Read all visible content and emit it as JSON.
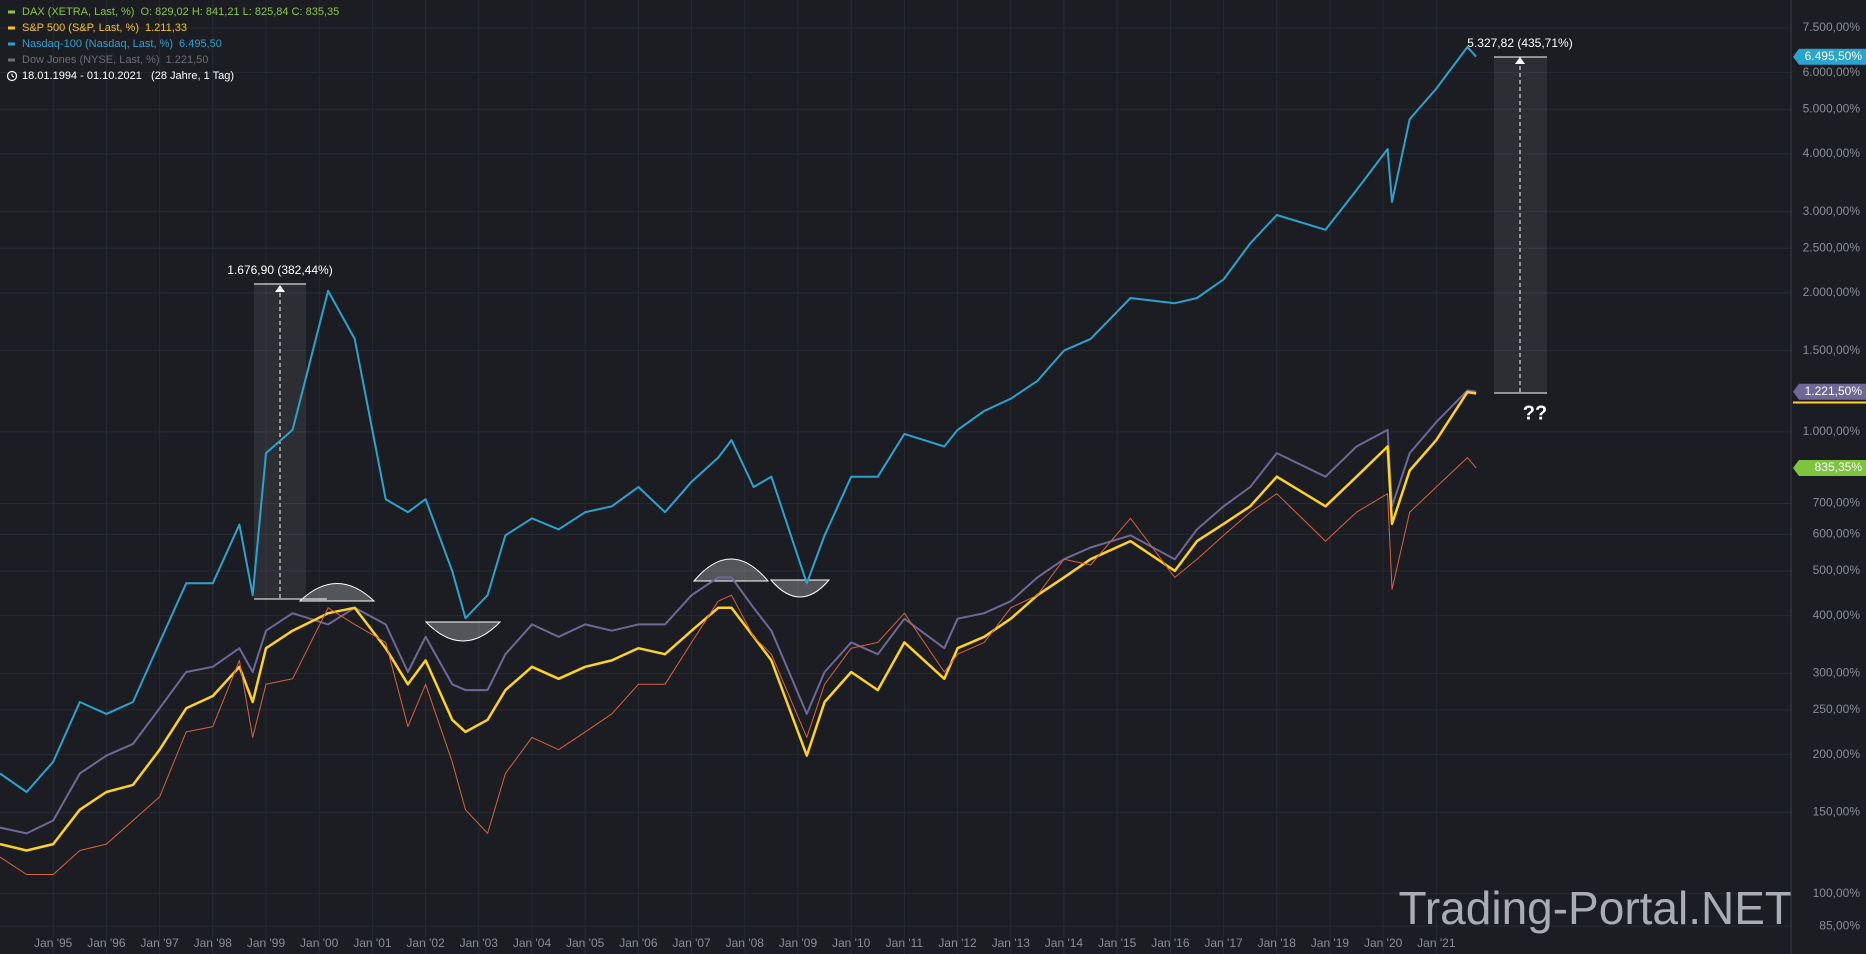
{
  "chart_data": {
    "type": "line",
    "log_scale": true,
    "grid": true,
    "date_range": "18.01.1994 - 01.10.2021   (28 Jahre, 1 Tag)",
    "annotations": [
      "1.676,90 (382,44%)",
      "5.327,82 (435,71%)",
      "??"
    ],
    "watermark": "Trading-Portal.NET",
    "x": [
      "1994-01",
      "1994-07",
      "1995-01",
      "1995-07",
      "1996-01",
      "1996-07",
      "1997-01",
      "1997-07",
      "1998-01",
      "1998-07",
      "1998-10",
      "1999-01",
      "1999-07",
      "2000-03",
      "2000-09",
      "2001-04",
      "2001-09",
      "2002-01",
      "2002-07",
      "2002-10",
      "2003-03",
      "2003-07",
      "2004-01",
      "2004-07",
      "2005-01",
      "2005-07",
      "2006-01",
      "2006-07",
      "2007-01",
      "2007-07",
      "2007-10",
      "2008-03",
      "2008-07",
      "2009-03",
      "2009-07",
      "2010-01",
      "2010-07",
      "2011-01",
      "2011-10",
      "2012-01",
      "2012-07",
      "2013-01",
      "2013-07",
      "2014-01",
      "2014-07",
      "2015-04",
      "2016-02",
      "2016-07",
      "2017-01",
      "2017-07",
      "2018-01",
      "2018-12",
      "2019-07",
      "2020-02",
      "2020-03",
      "2020-07",
      "2021-01",
      "2021-08",
      "2021-10"
    ],
    "series": [
      {
        "name": "DAX (XETRA, Last, %)",
        "legend_value": "O: 829,02  H: 841,21  L: 825,84  C: 835,35",
        "axis_label": "835,35%",
        "color": "#d9623b",
        "legend_color": "#8cc63f",
        "tag_color": "#7cc53d",
        "values": [
          120,
          110,
          110,
          124,
          128,
          144,
          162,
          224,
          230,
          320,
          218,
          284,
          292,
          416,
          383,
          350,
          230,
          284,
          193,
          152,
          135,
          182,
          218,
          205,
          224,
          245,
          284,
          284,
          350,
          430,
          443,
          360,
          330,
          218,
          284,
          340,
          350,
          405,
          302,
          330,
          350,
          416,
          443,
          530,
          515,
          650,
          484,
          530,
          597,
          670,
          735,
          580,
          670,
          735,
          456,
          670,
          760,
          880,
          835.35
        ]
      },
      {
        "name": "S&P 500 (S&P, Last, %)",
        "legend_value": "1.211,33",
        "color": "#ffd21f",
        "legend_color": "#f5c518",
        "values": [
          128,
          124,
          128,
          152,
          166,
          172,
          205,
          252,
          268,
          310,
          260,
          340,
          371,
          405,
          416,
          340,
          284,
          320,
          238,
          224,
          238,
          276,
          310,
          292,
          310,
          320,
          340,
          330,
          371,
          416,
          416,
          360,
          320,
          199,
          260,
          302,
          276,
          350,
          292,
          340,
          360,
          394,
          443,
          484,
          530,
          580,
          500,
          580,
          632,
          690,
          800,
          690,
          800,
          930,
          632,
          825,
          960,
          1220,
          1211.33
        ]
      },
      {
        "name": "Nasdaq-100 (Nasdaq, Last, %)",
        "legend_value": "6.495,50",
        "axis_label": "6.495,50%",
        "color": "#2ba3cf",
        "legend_color": "#2ba3cf",
        "tag_color": "#2ba3cf",
        "values": [
          182,
          166,
          193,
          260,
          245,
          260,
          350,
          470,
          470,
          630,
          443,
          900,
          1010,
          2020,
          1590,
          715,
          670,
          715,
          500,
          395,
          443,
          597,
          650,
          615,
          670,
          690,
          760,
          670,
          780,
          880,
          960,
          760,
          800,
          470,
          597,
          800,
          800,
          990,
          930,
          1010,
          1110,
          1180,
          1290,
          1500,
          1590,
          1950,
          1900,
          1950,
          2140,
          2560,
          2950,
          2740,
          3340,
          4100,
          3150,
          4760,
          5540,
          6820,
          6495.5
        ]
      },
      {
        "name": "Dow Jones (NYSE, Last, %)",
        "legend_value": "1.221,50",
        "axis_label": "1.221,50%",
        "color": "#6f6796",
        "legend_color": "#6e6f75",
        "tag_color": "#6f6796",
        "values": [
          139,
          135,
          144,
          182,
          199,
          211,
          252,
          302,
          310,
          340,
          302,
          371,
          405,
          383,
          416,
          383,
          302,
          360,
          284,
          276,
          276,
          330,
          383,
          360,
          383,
          371,
          383,
          383,
          443,
          484,
          484,
          416,
          371,
          245,
          302,
          350,
          330,
          394,
          340,
          394,
          405,
          430,
          484,
          530,
          562,
          597,
          530,
          615,
          690,
          760,
          900,
          800,
          930,
          1010,
          690,
          900,
          1050,
          1230,
          1221.5
        ]
      }
    ],
    "xlim": [
      "1994-01",
      "2027-09"
    ],
    "xticks": [
      {
        "value": "1995-01",
        "label": "Jan '95"
      },
      {
        "value": "1996-01",
        "label": "Jan '96"
      },
      {
        "value": "1997-01",
        "label": "Jan '97"
      },
      {
        "value": "1998-01",
        "label": "Jan '98"
      },
      {
        "value": "1999-01",
        "label": "Jan '99"
      },
      {
        "value": "2000-01",
        "label": "Jan '00"
      },
      {
        "value": "2001-01",
        "label": "Jan '01"
      },
      {
        "value": "2002-01",
        "label": "Jan '02"
      },
      {
        "value": "2003-01",
        "label": "Jan '03"
      },
      {
        "value": "2004-01",
        "label": "Jan '04"
      },
      {
        "value": "2005-01",
        "label": "Jan '05"
      },
      {
        "value": "2006-01",
        "label": "Jan '06"
      },
      {
        "value": "2007-01",
        "label": "Jan '07"
      },
      {
        "value": "2008-01",
        "label": "Jan '08"
      },
      {
        "value": "2009-01",
        "label": "Jan '09"
      },
      {
        "value": "2010-01",
        "label": "Jan '10"
      },
      {
        "value": "2011-01",
        "label": "Jan '11"
      },
      {
        "value": "2012-01",
        "label": "Jan '12"
      },
      {
        "value": "2013-01",
        "label": "Jan '13"
      },
      {
        "value": "2014-01",
        "label": "Jan '14"
      },
      {
        "value": "2015-01",
        "label": "Jan '15"
      },
      {
        "value": "2016-01",
        "label": "Jan '16"
      },
      {
        "value": "2017-01",
        "label": "Jan '17"
      },
      {
        "value": "2018-01",
        "label": "Jan '18"
      },
      {
        "value": "2019-01",
        "label": "Jan '19"
      },
      {
        "value": "2020-01",
        "label": "Jan '20"
      },
      {
        "value": "2021-01",
        "label": "Jan '21"
      }
    ],
    "ylim": [
      74,
      8620
    ],
    "yticks": [
      {
        "value": 85,
        "label": "85,00%"
      },
      {
        "value": 100,
        "label": "100,00%"
      },
      {
        "value": 150,
        "label": "150,00%"
      },
      {
        "value": 200,
        "label": "200,00%"
      },
      {
        "value": 250,
        "label": "250,00%"
      },
      {
        "value": 300,
        "label": "300,00%"
      },
      {
        "value": 400,
        "label": "400,00%"
      },
      {
        "value": 500,
        "label": "500,00%"
      },
      {
        "value": 600,
        "label": "600,00%"
      },
      {
        "value": 700,
        "label": "700,00%"
      },
      {
        "value": 1000,
        "label": "1.000,00%"
      },
      {
        "value": 1500,
        "label": "1.500,00%"
      },
      {
        "value": 2000,
        "label": "2.000,00%"
      },
      {
        "value": 2500,
        "label": "2.500,00%"
      },
      {
        "value": 3000,
        "label": "3.000,00%"
      },
      {
        "value": 4000,
        "label": "4.000,00%"
      },
      {
        "value": 5000,
        "label": "5.000,00%"
      },
      {
        "value": 6000,
        "label": "6.000,00%"
      },
      {
        "value": 7500,
        "label": "7.500,00%"
      }
    ]
  }
}
